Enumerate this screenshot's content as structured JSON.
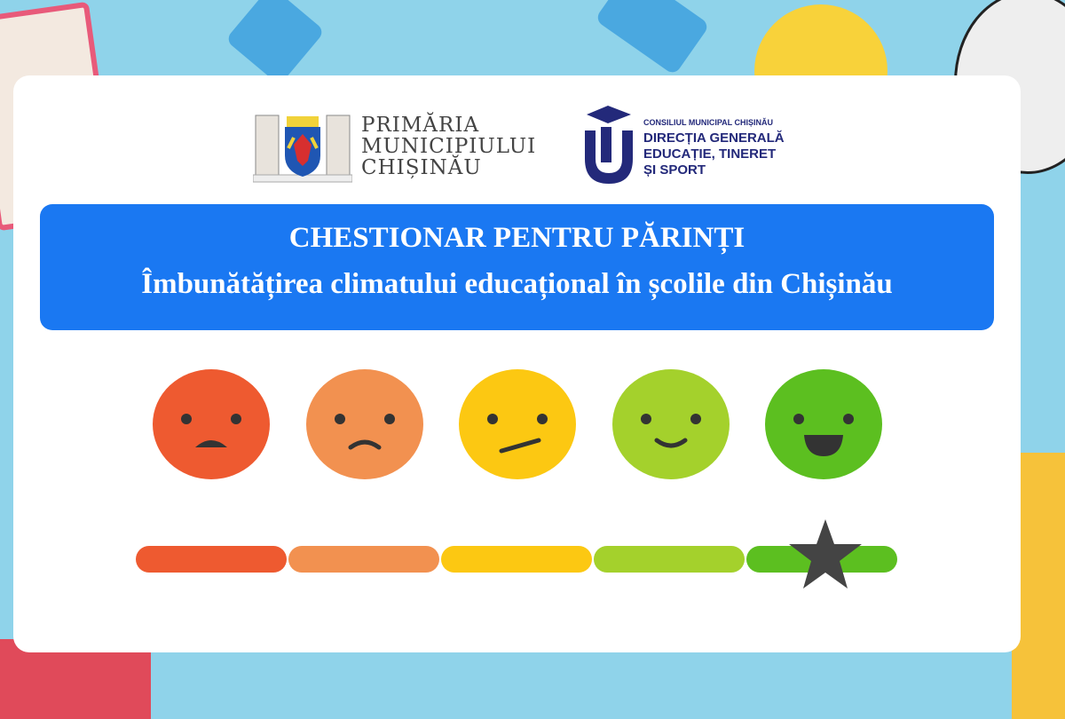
{
  "header": {
    "logo_left": {
      "line1": "PRIMĂRIA",
      "line2": "MUNICIPIULUI",
      "line3": "CHIȘINĂU"
    },
    "logo_right": {
      "subtitle": "CONSILIUL MUNICIPAL CHIȘINĂU",
      "line1": "DIRECȚIA GENERALĂ",
      "line2": "EDUCAȚIE, TINERET",
      "line3": "ȘI SPORT"
    }
  },
  "banner": {
    "title": "CHESTIONAR PENTRU PĂRINȚI",
    "subtitle": "Îmbunătățirea climatului educațional în școlile din Chișinău"
  },
  "rating": {
    "levels": [
      {
        "mood": "very-sad",
        "color": "#ee5a30"
      },
      {
        "mood": "sad",
        "color": "#f29150"
      },
      {
        "mood": "neutral",
        "color": "#fcc812"
      },
      {
        "mood": "happy",
        "color": "#a4d12c"
      },
      {
        "mood": "very-happy",
        "color": "#5cbf20"
      }
    ],
    "selected_level": 5,
    "marker_icon": "star-icon"
  },
  "colors": {
    "banner": "#1a78f2",
    "logo_navy": "#23297a",
    "background": "#8fd3ea"
  }
}
